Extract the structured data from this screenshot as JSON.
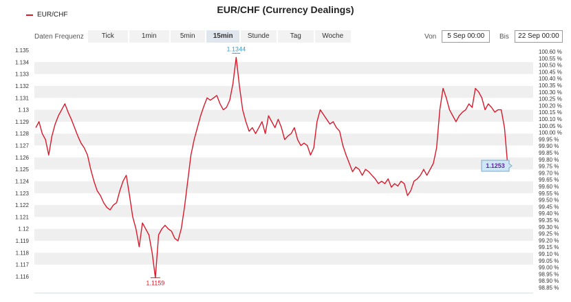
{
  "title": "EUR/CHF (Currency Dealings)",
  "legend": {
    "series_name": "EUR/CHF",
    "color": "#d9182a"
  },
  "toolbar": {
    "frequency_label": "Daten Frequenz",
    "tabs": [
      "Tick",
      "1min",
      "5min",
      "15min",
      "Stunde",
      "Tag",
      "Woche"
    ],
    "active_tab": "15min"
  },
  "range": {
    "from_label": "Von",
    "from_value": "5 Sep 00:00",
    "to_label": "Bis",
    "to_value": "22 Sep 00:00"
  },
  "chart_data": {
    "type": "line",
    "series": [
      {
        "name": "EUR/CHF",
        "color": "#d9182a",
        "values": [
          1.1285,
          1.129,
          1.128,
          1.1275,
          1.1262,
          1.1278,
          1.1288,
          1.1295,
          1.13,
          1.1305,
          1.1298,
          1.1292,
          1.1285,
          1.1278,
          1.1272,
          1.1268,
          1.1262,
          1.125,
          1.124,
          1.1232,
          1.1228,
          1.1222,
          1.1218,
          1.1216,
          1.122,
          1.1222,
          1.1232,
          1.124,
          1.1245,
          1.1228,
          1.121,
          1.12,
          1.1185,
          1.1205,
          1.12,
          1.1195,
          1.118,
          1.1159,
          1.1195,
          1.12,
          1.1203,
          1.12,
          1.1198,
          1.1192,
          1.119,
          1.12,
          1.1218,
          1.124,
          1.1262,
          1.1275,
          1.1285,
          1.1295,
          1.1303,
          1.131,
          1.1308,
          1.131,
          1.1312,
          1.1305,
          1.13,
          1.1302,
          1.1308,
          1.1322,
          1.1344,
          1.132,
          1.13,
          1.129,
          1.1282,
          1.1285,
          1.128,
          1.1285,
          1.129,
          1.128,
          1.1295,
          1.129,
          1.1285,
          1.1292,
          1.1285,
          1.1275,
          1.1278,
          1.128,
          1.1285,
          1.1275,
          1.127,
          1.1272,
          1.127,
          1.1262,
          1.1268,
          1.129,
          1.13,
          1.1296,
          1.1292,
          1.1288,
          1.129,
          1.1285,
          1.1282,
          1.127,
          1.1262,
          1.1255,
          1.1248,
          1.1252,
          1.125,
          1.1245,
          1.125,
          1.1248,
          1.1245,
          1.1242,
          1.1238,
          1.124,
          1.1238,
          1.1242,
          1.1235,
          1.1238,
          1.1236,
          1.124,
          1.1238,
          1.1228,
          1.1232,
          1.124,
          1.1242,
          1.1245,
          1.125,
          1.1245,
          1.125,
          1.1255,
          1.1268,
          1.13,
          1.1318,
          1.131,
          1.13,
          1.1295,
          1.129,
          1.1295,
          1.1298,
          1.13,
          1.1305,
          1.1302,
          1.1318,
          1.1315,
          1.131,
          1.13,
          1.1305,
          1.1302,
          1.1298,
          1.13,
          1.13,
          1.1285,
          1.1253
        ]
      }
    ],
    "last_value": "1.1253",
    "max_label": "1.1344",
    "min_label": "1.1159",
    "y_axis_left": {
      "min": 1.1155,
      "max": 1.135,
      "ticks": [
        "1.135",
        "1.134",
        "1.133",
        "1.132",
        "1.131",
        "1.13",
        "1.129",
        "1.128",
        "1.127",
        "1.126",
        "1.125",
        "1.124",
        "1.123",
        "1.122",
        "1.121",
        "1.12",
        "1.119",
        "1.118",
        "1.117",
        "1.116"
      ]
    },
    "y_axis_right_ticks": [
      "100.60 %",
      "100.55 %",
      "100.50 %",
      "100.45 %",
      "100.40 %",
      "100.35 %",
      "100.30 %",
      "100.25 %",
      "100.20 %",
      "100.15 %",
      "100.10 %",
      "100.05 %",
      "100.00 %",
      "99.95 %",
      "99.90 %",
      "99.85 %",
      "99.80 %",
      "99.75 %",
      "99.70 %",
      "99.65 %",
      "99.60 %",
      "99.55 %",
      "99.50 %",
      "99.45 %",
      "99.40 %",
      "99.35 %",
      "99.30 %",
      "99.25 %",
      "99.20 %",
      "99.15 %",
      "99.10 %",
      "99.05 %",
      "99.00 %",
      "98.95 %",
      "98.90 %",
      "98.85 %"
    ],
    "grid": true,
    "band_color": "#efefef",
    "xlabel": "",
    "ylabel": ""
  }
}
